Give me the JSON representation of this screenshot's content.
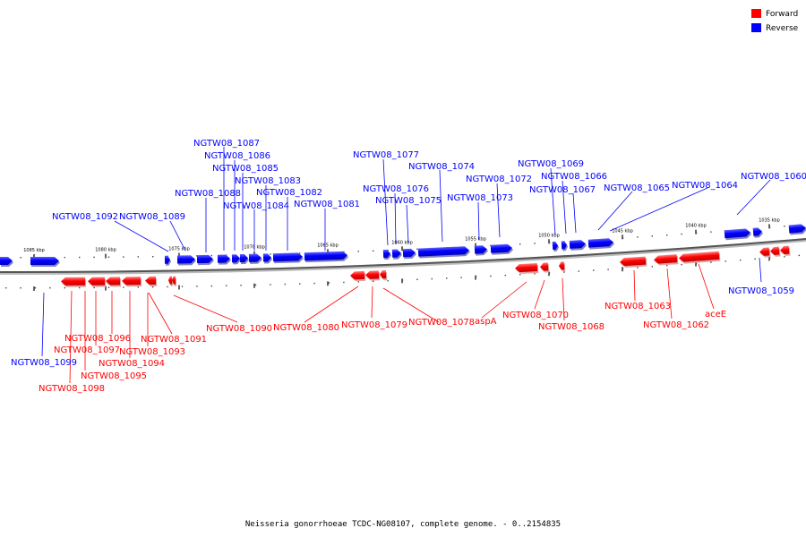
{
  "legend": {
    "forward": {
      "label": "Forward",
      "color": "#ff0000"
    },
    "reverse": {
      "label": "Reverse",
      "color": "#0000ff"
    }
  },
  "caption": "Neisseria gonorrhoeae TCDC-NG08107, complete genome. - 0..2154835",
  "ticks": [
    "1085 kbp",
    "1080 kbp",
    "1075 kbp",
    "1070 kbp",
    "1065 kbp",
    "1060 kbp",
    "1055 kbp",
    "1050 kbp",
    "1045 kbp",
    "1040 kbp",
    "1035 kbp"
  ],
  "genes_reverse": [
    "NGTW08_1087",
    "NGTW08_1086",
    "NGTW08_1085",
    "NGTW08_1083",
    "NGTW08_1088",
    "NGTW08_1082",
    "NGTW08_1084",
    "NGTW08_1081",
    "NGTW08_1092",
    "NGTW08_1089",
    "NGTW08_1077",
    "NGTW08_1074",
    "NGTW08_1076",
    "NGTW08_1075",
    "NGTW08_1072",
    "NGTW08_1073",
    "NGTW08_1069",
    "NGTW08_1066",
    "NGTW08_1067",
    "NGTW08_1065",
    "NGTW08_1064",
    "NGTW08_1060",
    "NGTW08_1059",
    "NGTW08_1099"
  ],
  "genes_forward": [
    "NGTW08_1090",
    "NGTW08_1080",
    "NGTW08_1079",
    "NGTW08_1078",
    "aspA",
    "NGTW08_1070",
    "NGTW08_1068",
    "NGTW08_1063",
    "NGTW08_1062",
    "aceE",
    "NGTW08_1096",
    "NGTW08_1091",
    "NGTW08_1097",
    "NGTW08_1093",
    "NGTW08_1094",
    "NGTW08_1095",
    "NGTW08_1098"
  ]
}
